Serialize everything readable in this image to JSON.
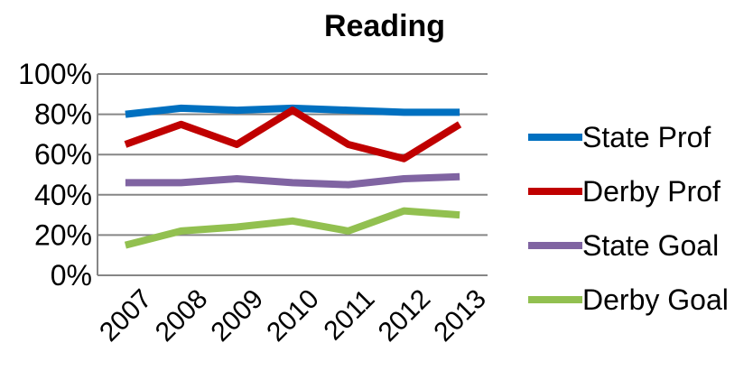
{
  "chart_data": {
    "type": "line",
    "title": "Reading",
    "xlabel": "",
    "ylabel": "",
    "x": [
      "2007",
      "2008",
      "2009",
      "2010",
      "2011",
      "2012",
      "2013"
    ],
    "y_ticks": [
      "0%",
      "20%",
      "40%",
      "60%",
      "80%",
      "100%"
    ],
    "ylim": [
      0,
      100
    ],
    "grid": true,
    "legend_position": "right",
    "series": [
      {
        "name": "State Prof",
        "color": "#0070C0",
        "values": [
          80,
          83,
          82,
          83,
          82,
          81,
          81
        ]
      },
      {
        "name": "Derby Prof",
        "color": "#C00000",
        "values": [
          65,
          75,
          65,
          82,
          65,
          58,
          75
        ]
      },
      {
        "name": "State Goal",
        "color": "#8064A2",
        "values": [
          46,
          46,
          48,
          46,
          45,
          48,
          49
        ]
      },
      {
        "name": "Derby Goal",
        "color": "#92C050",
        "values": [
          15,
          22,
          24,
          27,
          22,
          32,
          30
        ]
      }
    ]
  }
}
